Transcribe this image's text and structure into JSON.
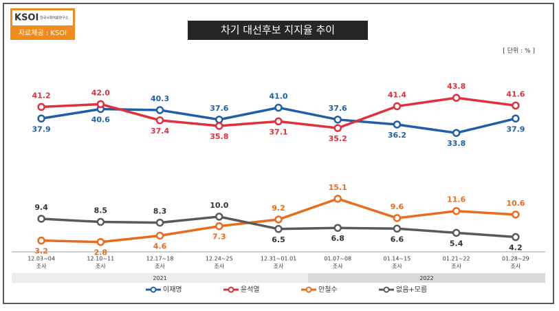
{
  "chart_data": {
    "type": "line",
    "title": "차기 대선후보 지지율 추이",
    "logo": {
      "name": "KSOI",
      "org": "한국사회여론연구소",
      "source": "자료제공 : KSOI"
    },
    "unit": "[ 단위 : % ]",
    "categories": [
      "12.03~04",
      "12.10~11",
      "12.17~18",
      "12.24~25",
      "12.31~01.01",
      "01.07~08",
      "01.14~15",
      "01.21~22",
      "01.28~29"
    ],
    "category_suffix": "조사",
    "year_groups": [
      {
        "label": "2021",
        "span": 5
      },
      {
        "label": "2022",
        "span": 4
      }
    ],
    "ylim": [
      0,
      45
    ],
    "series": [
      {
        "name": "이재명",
        "color": "#1f5fa8",
        "values": [
          37.9,
          40.6,
          40.3,
          37.6,
          41.0,
          37.6,
          36.2,
          33.8,
          37.9
        ],
        "value_labels": [
          "37.9",
          "40.6",
          "40.3",
          "37.6",
          "41.0",
          "37.6",
          "36.2",
          "33.8",
          "37.9"
        ]
      },
      {
        "name": "윤석열",
        "color": "#e0303b",
        "values": [
          41.2,
          42.0,
          37.4,
          35.8,
          37.1,
          35.2,
          41.4,
          43.8,
          41.6
        ],
        "value_labels": [
          "41.2",
          "42.0",
          "37.4",
          "35.8",
          "37.1",
          "35.2",
          "41.4",
          "43.8",
          "41.6"
        ]
      },
      {
        "name": "안철수",
        "color": "#ea6b1b",
        "values": [
          3.2,
          2.8,
          4.6,
          7.3,
          9.2,
          15.1,
          9.6,
          11.6,
          10.6
        ],
        "value_labels": [
          "3.2",
          "2.8",
          "4.6",
          "7.3",
          "9.2",
          "15.1",
          "9.6",
          "11.6",
          "10.6"
        ]
      },
      {
        "name": "없음+모름",
        "color": "#595959",
        "values": [
          9.4,
          8.5,
          8.3,
          10.0,
          6.5,
          6.8,
          6.6,
          5.4,
          4.2
        ],
        "value_labels": [
          "9.4",
          "8.5",
          "8.3",
          "10.0",
          "6.5",
          "6.8",
          "6.6",
          "5.4",
          "4.2"
        ]
      }
    ]
  }
}
